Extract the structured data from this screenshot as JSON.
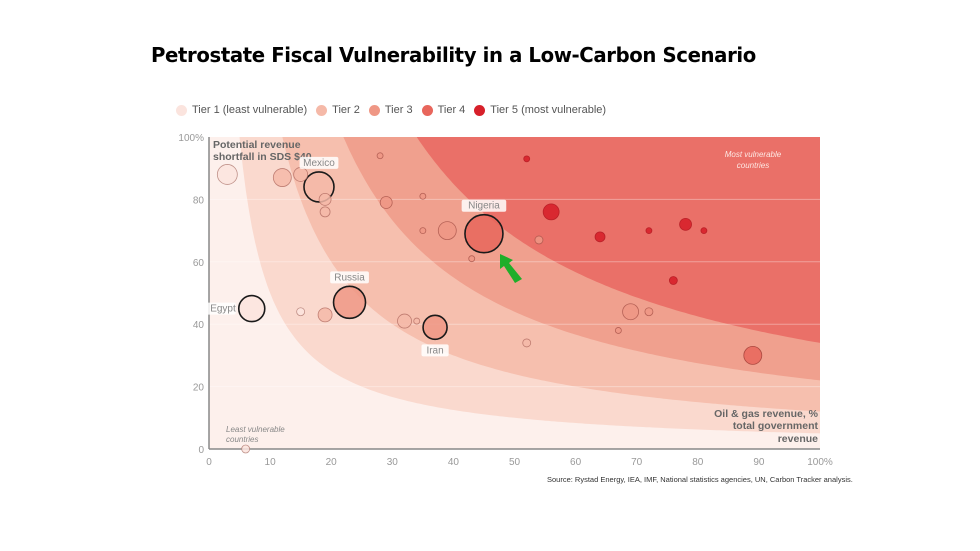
{
  "title": "Petrostate Fiscal Vulnerability in a Low-Carbon Scenario",
  "source": "Source: Rystad Energy, IEA, IMF, National statistics agencies, UN, Carbon Tracker analysis.",
  "colors": {
    "tier1": "#fbe4de",
    "tier2": "#f5b9a8",
    "tier3": "#ef9785",
    "tier4": "#e8665c",
    "tier5": "#d7202a",
    "band1": "#fdf0ec",
    "band2": "#fad9ce",
    "band3": "#f6bfae",
    "band4": "#f0a08e",
    "band5": "#ea7068",
    "arrow": "#1fae2a"
  },
  "chart_data": {
    "type": "scatter",
    "subtype": "bubble",
    "title": "Petrostate Fiscal Vulnerability in a Low-Carbon Scenario",
    "xlabel": "Oil & gas revenue, % total government revenue",
    "ylabel": "Potential revenue shortfall in SDS $40",
    "xlim": [
      0,
      100
    ],
    "ylim": [
      0,
      100
    ],
    "x_ticks": [
      "0",
      "10",
      "20",
      "30",
      "40",
      "50",
      "60",
      "70",
      "80",
      "90",
      "100%"
    ],
    "y_ticks": [
      "0",
      "20",
      "40",
      "60",
      "80",
      "100%"
    ],
    "legend": {
      "placement": "top-left",
      "entries": [
        {
          "label": "Tier 1 (least vulnerable)",
          "tier": 1
        },
        {
          "label": "Tier 2",
          "tier": 2
        },
        {
          "label": "Tier 3",
          "tier": 3
        },
        {
          "label": "Tier 4",
          "tier": 4
        },
        {
          "label": "Tier 5 (most vulnerable)",
          "tier": 5
        }
      ]
    },
    "annotations": {
      "top_left": "Potential revenue shortfall in SDS $40",
      "bottom_right": "Oil & gas revenue, % total government revenue",
      "most_vulnerable": "Most vulnerable countries",
      "least_vulnerable": "Least vulnerable countries"
    },
    "band_levels_xy_product": [
      500,
      1200,
      2200,
      3400
    ],
    "points": [
      {
        "x": 3,
        "y": 88,
        "size": 10,
        "tier": 1
      },
      {
        "x": 12,
        "y": 87,
        "size": 9,
        "tier": 2
      },
      {
        "x": 15,
        "y": 88,
        "size": 7,
        "tier": 2
      },
      {
        "x": 18,
        "y": 84,
        "size": 15,
        "tier": 2,
        "label": "Mexico",
        "highlight": true
      },
      {
        "x": 19,
        "y": 80,
        "size": 6,
        "tier": 2
      },
      {
        "x": 19,
        "y": 76,
        "size": 5,
        "tier": 2
      },
      {
        "x": 28,
        "y": 94,
        "size": 3,
        "tier": 3
      },
      {
        "x": 29,
        "y": 79,
        "size": 6,
        "tier": 3
      },
      {
        "x": 35,
        "y": 81,
        "size": 3,
        "tier": 3
      },
      {
        "x": 35,
        "y": 70,
        "size": 3,
        "tier": 3
      },
      {
        "x": 39,
        "y": 70,
        "size": 9,
        "tier": 3
      },
      {
        "x": 43,
        "y": 61,
        "size": 3,
        "tier": 3
      },
      {
        "x": 45,
        "y": 69,
        "size": 19,
        "tier": 4,
        "label": "Nigeria",
        "highlight": true
      },
      {
        "x": 52,
        "y": 93,
        "size": 3,
        "tier": 5
      },
      {
        "x": 56,
        "y": 76,
        "size": 8,
        "tier": 5
      },
      {
        "x": 54,
        "y": 67,
        "size": 4,
        "tier": 3
      },
      {
        "x": 64,
        "y": 68,
        "size": 5,
        "tier": 5
      },
      {
        "x": 72,
        "y": 70,
        "size": 3,
        "tier": 5
      },
      {
        "x": 78,
        "y": 72,
        "size": 6,
        "tier": 5
      },
      {
        "x": 81,
        "y": 70,
        "size": 3,
        "tier": 5
      },
      {
        "x": 76,
        "y": 54,
        "size": 4,
        "tier": 5
      },
      {
        "x": 7,
        "y": 45,
        "size": 13,
        "tier": 1,
        "label": "Egypt",
        "highlight": true
      },
      {
        "x": 15,
        "y": 44,
        "size": 4,
        "tier": 1
      },
      {
        "x": 19,
        "y": 43,
        "size": 7,
        "tier": 2
      },
      {
        "x": 23,
        "y": 47,
        "size": 16,
        "tier": 3,
        "label": "Russia",
        "highlight": true
      },
      {
        "x": 32,
        "y": 41,
        "size": 7,
        "tier": 2
      },
      {
        "x": 34,
        "y": 41,
        "size": 3,
        "tier": 2
      },
      {
        "x": 37,
        "y": 39,
        "size": 12,
        "tier": 3,
        "label": "Iran",
        "highlight": true
      },
      {
        "x": 52,
        "y": 34,
        "size": 4,
        "tier": 2
      },
      {
        "x": 69,
        "y": 44,
        "size": 8,
        "tier": 3
      },
      {
        "x": 72,
        "y": 44,
        "size": 4,
        "tier": 3
      },
      {
        "x": 67,
        "y": 38,
        "size": 3,
        "tier": 3
      },
      {
        "x": 89,
        "y": 30,
        "size": 9,
        "tier": 4
      },
      {
        "x": 6,
        "y": 0,
        "size": 4,
        "tier": 1
      }
    ]
  }
}
